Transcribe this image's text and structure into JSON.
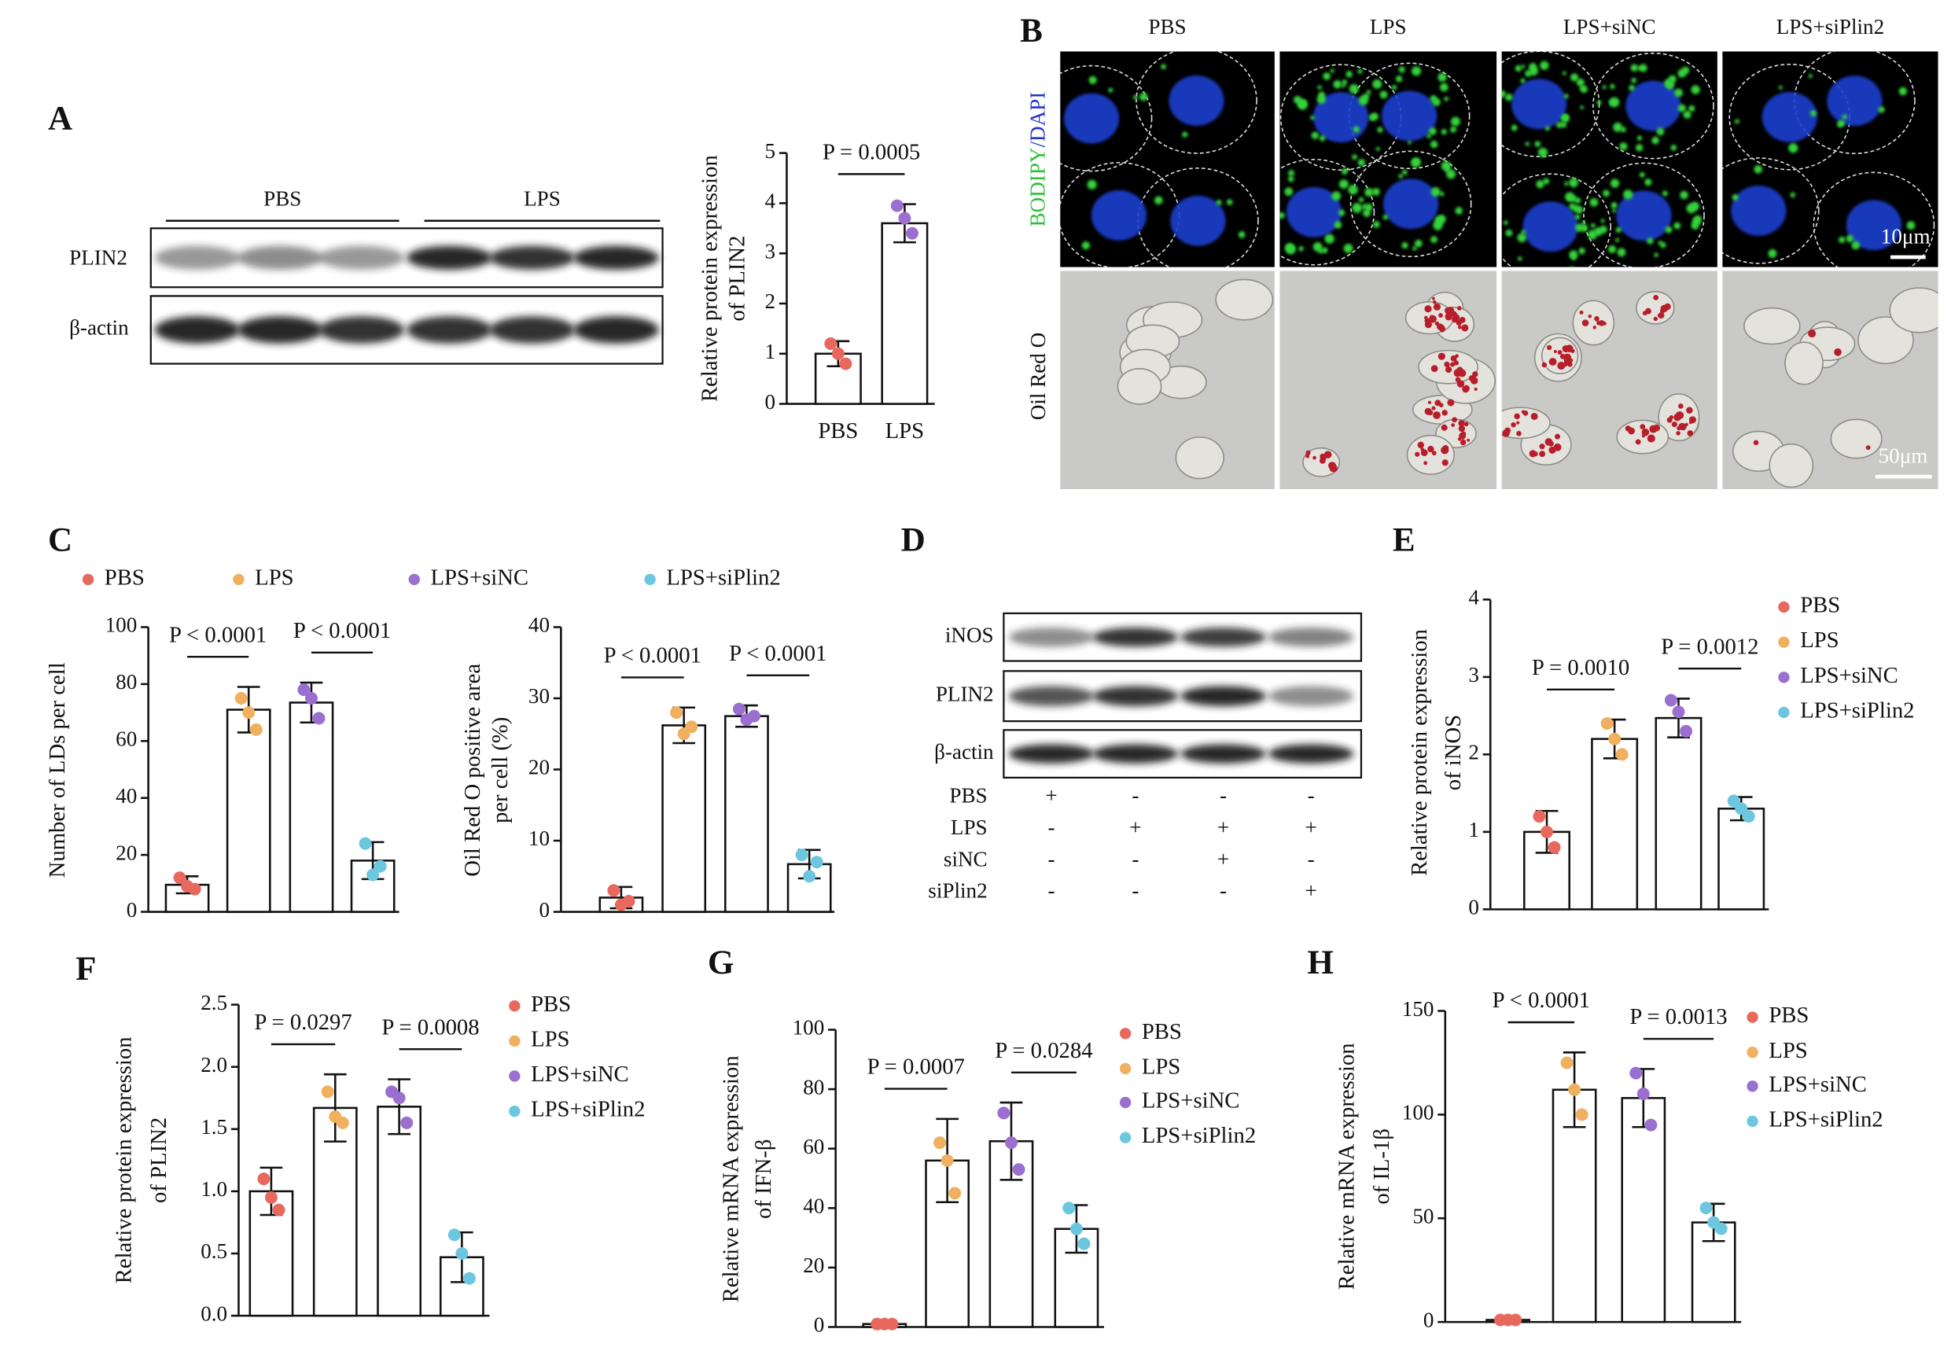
{
  "panel_labels": [
    "A",
    "B",
    "C",
    "D",
    "E",
    "F",
    "G",
    "H"
  ],
  "blot_a": {
    "groups": [
      "PBS",
      "LPS"
    ],
    "rows": [
      "PLIN2",
      "β-actin"
    ]
  },
  "micrographs": {
    "columns": [
      "PBS",
      "LPS",
      "LPS+siNC",
      "LPS+siPlin2"
    ],
    "stain_labels": [
      [
        "BODIPY",
        "/DAPI"
      ],
      [
        "Oil Red O"
      ]
    ],
    "scale_bars": [
      "10μm",
      "50μm"
    ]
  },
  "blot_d": {
    "rows": [
      "iNOS",
      "PLIN2",
      "β-actin"
    ],
    "conditions": [
      {
        "name": "PBS",
        "marks": [
          "+",
          "-",
          "-",
          "-"
        ]
      },
      {
        "name": "LPS",
        "marks": [
          "-",
          "+",
          "+",
          "+"
        ]
      },
      {
        "name": "siNC",
        "marks": [
          "-",
          "-",
          "+",
          "-"
        ]
      },
      {
        "name": "siPlin2",
        "marks": [
          "-",
          "-",
          "-",
          "+"
        ]
      }
    ]
  },
  "chart_data": [
    {
      "type": "bar",
      "ylabel": [
        "Relative protein expression",
        "of PLIN2"
      ],
      "categories": [
        "PBS",
        "LPS"
      ],
      "colors": [
        "#e8685e",
        "#9a6fd0"
      ],
      "values": [
        1.0,
        3.6
      ],
      "errors": [
        0.25,
        0.38
      ],
      "points": [
        [
          1.2,
          1.0,
          0.8
        ],
        [
          3.95,
          3.7,
          3.4
        ]
      ],
      "ylim": [
        0,
        5
      ],
      "yticks": [
        0,
        1,
        2,
        3,
        4,
        5
      ],
      "annotations": [
        "P = 0.0005"
      ]
    },
    {
      "type": "bar",
      "ylabel": [
        "Number of LDs per cell"
      ],
      "categories": [
        "PBS",
        "LPS",
        "LPS+siNC",
        "LPS+siPlin2"
      ],
      "colors": [
        "#e8685e",
        "#f0b060",
        "#9a6fd0",
        "#6cc6e0"
      ],
      "values": [
        9.5,
        71,
        73.5,
        18
      ],
      "errors": [
        3,
        8,
        7,
        6.5
      ],
      "points": [
        [
          12,
          9,
          8
        ],
        [
          75,
          70,
          64
        ],
        [
          78,
          75,
          68
        ],
        [
          24,
          13,
          16
        ]
      ],
      "ylim": [
        0,
        100
      ],
      "yticks": [
        0,
        20,
        40,
        60,
        80,
        100
      ],
      "annotations": [
        "P < 0.0001",
        "P < 0.0001"
      ],
      "legend": "top"
    },
    {
      "type": "bar",
      "ylabel": [
        "Oil Red O positive area",
        "per cell (%)"
      ],
      "colors": [
        "#e8685e",
        "#f0b060",
        "#9a6fd0",
        "#6cc6e0"
      ],
      "values": [
        2,
        26.2,
        27.5,
        6.7
      ],
      "errors": [
        1.5,
        2.5,
        1.5,
        2
      ],
      "points": [
        [
          3,
          1,
          1.5
        ],
        [
          28,
          25,
          26
        ],
        [
          28.5,
          27,
          27.5
        ],
        [
          8,
          5,
          7
        ]
      ],
      "ylim": [
        0,
        40
      ],
      "yticks": [
        0,
        10,
        20,
        30,
        40
      ],
      "annotations": [
        "P < 0.0001",
        "P < 0.0001"
      ]
    },
    {
      "type": "bar",
      "ylabel": [
        "Relative protein expression",
        "of  iNOS"
      ],
      "categories": [
        "PBS",
        "LPS",
        "LPS+siNC",
        "LPS+siPlin2"
      ],
      "colors": [
        "#e8685e",
        "#f0b060",
        "#9a6fd0",
        "#6cc6e0"
      ],
      "values": [
        1.0,
        2.2,
        2.47,
        1.3
      ],
      "errors": [
        0.27,
        0.25,
        0.25,
        0.15
      ],
      "points": [
        [
          1.2,
          1.0,
          0.8
        ],
        [
          2.4,
          2.2,
          2.0
        ],
        [
          2.7,
          2.55,
          2.3
        ],
        [
          1.4,
          1.3,
          1.2
        ]
      ],
      "ylim": [
        0,
        4
      ],
      "yticks": [
        0,
        1,
        2,
        3,
        4
      ],
      "annotations": [
        "P = 0.0010",
        "P = 0.0012"
      ],
      "legend": "right"
    },
    {
      "type": "bar",
      "ylabel": [
        "Relative protein expression",
        "of  PLIN2"
      ],
      "categories": [
        "PBS",
        "LPS",
        "LPS+siNC",
        "LPS+siPlin2"
      ],
      "colors": [
        "#e8685e",
        "#f0b060",
        "#9a6fd0",
        "#6cc6e0"
      ],
      "values": [
        1.0,
        1.67,
        1.68,
        0.47
      ],
      "errors": [
        0.19,
        0.27,
        0.22,
        0.2
      ],
      "points": [
        [
          1.1,
          0.95,
          0.85
        ],
        [
          1.8,
          1.6,
          1.55
        ],
        [
          1.8,
          1.75,
          1.55
        ],
        [
          0.65,
          0.5,
          0.3
        ]
      ],
      "ylim": [
        0,
        2.5
      ],
      "yticks": [
        {
          "value": 0,
          "label": "0.0"
        },
        0.5,
        {
          "value": 1,
          "label": "1.0"
        },
        1.5,
        {
          "value": 2,
          "label": "2.0"
        },
        2.5
      ],
      "annotations": [
        "P = 0.0297",
        "P = 0.0008"
      ],
      "legend": "right"
    },
    {
      "type": "bar",
      "ylabel": [
        "Relative mRNA expression",
        "of IFN-β"
      ],
      "categories": [
        "PBS",
        "LPS",
        "LPS+siNC",
        "LPS+siPlin2"
      ],
      "colors": [
        "#e8685e",
        "#f0b060",
        "#9a6fd0",
        "#6cc6e0"
      ],
      "values": [
        1,
        56,
        62.5,
        33
      ],
      "errors": [
        0.3,
        14,
        13,
        8
      ],
      "points": [
        [
          1,
          1,
          1
        ],
        [
          62,
          56,
          45
        ],
        [
          72,
          62,
          53
        ],
        [
          40,
          33,
          28
        ]
      ],
      "ylim": [
        0,
        100
      ],
      "yticks": [
        0,
        20,
        40,
        60,
        80,
        100
      ],
      "annotations": [
        "P = 0.0007",
        "P = 0.0284"
      ],
      "legend": "right"
    },
    {
      "type": "bar",
      "ylabel": [
        "Relative mRNA expression",
        "of IL-1β"
      ],
      "categories": [
        "PBS",
        "LPS",
        "LPS+siNC",
        "LPS+siPlin2"
      ],
      "colors": [
        "#e8685e",
        "#f0b060",
        "#9a6fd0",
        "#6cc6e0"
      ],
      "values": [
        1,
        112,
        108,
        48
      ],
      "errors": [
        0.3,
        18,
        14,
        9
      ],
      "points": [
        [
          1,
          1,
          1
        ],
        [
          125,
          112,
          100
        ],
        [
          120,
          110,
          95
        ],
        [
          55,
          48,
          45
        ]
      ],
      "ylim": [
        0,
        150
      ],
      "yticks": [
        0,
        50,
        100,
        150
      ],
      "annotations": [
        "P < 0.0001",
        "P = 0.0013"
      ],
      "legend": "right"
    }
  ]
}
